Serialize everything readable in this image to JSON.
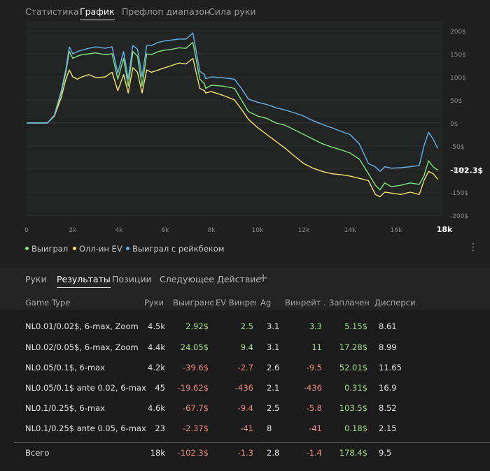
{
  "top_tabs": [
    "Статистика",
    "График",
    "Префлоп диапазон",
    "Сила руки"
  ],
  "active_top_tab": 1,
  "legend": [
    {
      "label": "Выиграл",
      "color": "#7ee27a"
    },
    {
      "label": "Олл-ин EV",
      "color": "#f1e36c"
    },
    {
      "label": "Выиграл с рейкбеком",
      "color": "#63b3ea"
    }
  ],
  "chart_data": {
    "type": "line",
    "xlabel": "",
    "ylabel": "",
    "xlim": [
      0,
      18000
    ],
    "ylim": [
      -200,
      200
    ],
    "x_ticks": [
      "0",
      "2k",
      "4k",
      "6k",
      "8k",
      "10k",
      "12k",
      "14k",
      "16k",
      "18k"
    ],
    "x_tick_values": [
      0,
      2000,
      4000,
      6000,
      8000,
      10000,
      12000,
      14000,
      16000,
      18000
    ],
    "y_ticks": [
      "200$",
      "150$",
      "100$",
      "50$",
      "0$",
      "-50$",
      "-100$",
      "-150$",
      "-200$"
    ],
    "y_tick_values": [
      200,
      150,
      100,
      50,
      0,
      -50,
      -100,
      -150,
      -200
    ],
    "end_label": "-102.3$",
    "grid": true,
    "x": [
      0,
      900,
      1200,
      1500,
      1700,
      1850,
      2000,
      2200,
      2400,
      2700,
      3000,
      3400,
      3700,
      3950,
      4200,
      4400,
      4600,
      4800,
      5000,
      5200,
      5400,
      5700,
      6000,
      6300,
      6600,
      6900,
      7200,
      7500,
      7700,
      7750,
      8000,
      8500,
      9000,
      9300,
      9600,
      10000,
      10400,
      10800,
      11200,
      11600,
      12000,
      12400,
      12800,
      13200,
      13600,
      14000,
      14400,
      14800,
      15100,
      15300,
      15500,
      15800,
      16200,
      16600,
      17000,
      17200,
      17400,
      17600,
      17800
    ],
    "series": [
      {
        "name": "Выиграл",
        "color": "#7ee27a",
        "values": [
          0,
          0,
          15,
          65,
          110,
          155,
          140,
          145,
          148,
          150,
          152,
          148,
          150,
          95,
          140,
          80,
          155,
          145,
          80,
          150,
          148,
          155,
          158,
          160,
          163,
          162,
          175,
          95,
          85,
          75,
          82,
          80,
          75,
          50,
          25,
          15,
          10,
          0,
          -5,
          -15,
          -25,
          -35,
          -45,
          -52,
          -58,
          -65,
          -78,
          -110,
          -135,
          -145,
          -130,
          -138,
          -135,
          -130,
          -133,
          -115,
          -82,
          -95,
          -102.3
        ]
      },
      {
        "name": "Олл-ин EV",
        "color": "#f1e36c",
        "values": [
          0,
          0,
          15,
          55,
          95,
          115,
          100,
          95,
          100,
          105,
          98,
          100,
          110,
          70,
          105,
          65,
          120,
          110,
          65,
          115,
          110,
          115,
          120,
          125,
          130,
          128,
          140,
          75,
          70,
          65,
          68,
          60,
          50,
          30,
          8,
          -10,
          -25,
          -40,
          -55,
          -72,
          -88,
          -98,
          -105,
          -110,
          -112,
          -115,
          -120,
          -125,
          -155,
          -160,
          -150,
          -152,
          -155,
          -150,
          -155,
          -125,
          -105,
          -110,
          -122
        ]
      },
      {
        "name": "Выиграл с рейкбеком",
        "color": "#63b3ea",
        "values": [
          0,
          0,
          17,
          70,
          117,
          165,
          150,
          155,
          158,
          162,
          165,
          162,
          165,
          108,
          155,
          95,
          168,
          160,
          100,
          168,
          168,
          175,
          178,
          180,
          182,
          182,
          195,
          112,
          105,
          96,
          100,
          98,
          95,
          75,
          52,
          45,
          40,
          33,
          28,
          22,
          15,
          5,
          -3,
          -10,
          -18,
          -25,
          -45,
          -88,
          -95,
          -105,
          -95,
          -98,
          -97,
          -95,
          -92,
          -50,
          -20,
          -35,
          -55
        ]
      }
    ]
  },
  "bottom_tabs": [
    "Руки",
    "Результаты",
    "Позиции",
    "Следующее Действие"
  ],
  "active_bottom_tab": 1,
  "add_tab_icon": "plus-icon",
  "columns": [
    "Game Type",
    "Руки",
    "Выиграно",
    "EV Винрейт",
    "Ag",
    "Винрейт ...",
    "Заплачен...",
    "Дисперси..."
  ],
  "rows": [
    {
      "game_type": "NL0.01/0.02$, 6-max, Zoom",
      "hands": "4.5k",
      "won": "2.92$",
      "ev_wr": "2.5",
      "ag": "3.1",
      "wr": "3.3",
      "paid": "5.15$",
      "disp": "8.61",
      "won_c": "pos",
      "ev_c": "pos",
      "wr_c": "pos"
    },
    {
      "game_type": "NL0.02/0.05$, 6-max, Zoom",
      "hands": "4.4k",
      "won": "24.05$",
      "ev_wr": "9.4",
      "ag": "3.1",
      "wr": "11",
      "paid": "17.28$",
      "disp": "8.99",
      "won_c": "pos",
      "ev_c": "pos",
      "wr_c": "pos"
    },
    {
      "game_type": "NL0.05/0.1$, 6-max",
      "hands": "4.2k",
      "won": "-39.6$",
      "ev_wr": "-2.7",
      "ag": "2.6",
      "wr": "-9.5",
      "paid": "52.01$",
      "disp": "11.65",
      "won_c": "neg",
      "ev_c": "neg",
      "wr_c": "neg"
    },
    {
      "game_type": "NL0.05/0.1$ ante 0.02, 6-max",
      "hands": "45",
      "won": "-19.62$",
      "ev_wr": "-436",
      "ag": "2.1",
      "wr": "-436",
      "paid": "0.31$",
      "disp": "16.9",
      "won_c": "neg",
      "ev_c": "neg",
      "wr_c": "neg"
    },
    {
      "game_type": "NL0.1/0.25$, 6-max",
      "hands": "4.6k",
      "won": "-67.7$",
      "ev_wr": "-9.4",
      "ag": "2.5",
      "wr": "-5.8",
      "paid": "103.5$",
      "disp": "8.52",
      "won_c": "neg",
      "ev_c": "neg",
      "wr_c": "neg"
    },
    {
      "game_type": "NL0.1/0.25$ ante 0.05, 6-max",
      "hands": "23",
      "won": "-2.37$",
      "ev_wr": "-41",
      "ag": "8",
      "wr": "-41",
      "paid": "0.18$",
      "disp": "2.15",
      "won_c": "neg",
      "ev_c": "neg",
      "wr_c": "neg"
    }
  ],
  "total": {
    "game_type": "Всего",
    "hands": "18k",
    "won": "-102.3$",
    "ev_wr": "-1.3",
    "ag": "2.8",
    "wr": "-1.4",
    "paid": "178.4$",
    "disp": "9.5",
    "won_c": "neg",
    "ev_c": "neg",
    "wr_c": "neg"
  }
}
